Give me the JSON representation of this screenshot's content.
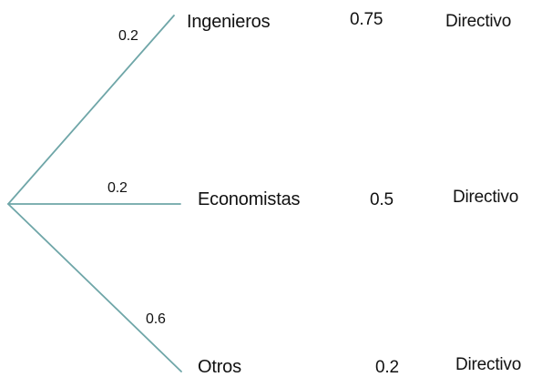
{
  "colors": {
    "branch": "#6fa6a8",
    "text": "#111111",
    "background": "#ffffff"
  },
  "tree": {
    "branches": [
      {
        "probability": "0.2",
        "category": "Ingenieros",
        "conditional_probability": "0.75",
        "outcome": "Directivo"
      },
      {
        "probability": "0.2",
        "category": "Economistas",
        "conditional_probability": "0.5",
        "outcome": "Directivo"
      },
      {
        "probability": "0.6",
        "category": "Otros",
        "conditional_probability": "0.2",
        "outcome": "Directivo"
      }
    ]
  }
}
